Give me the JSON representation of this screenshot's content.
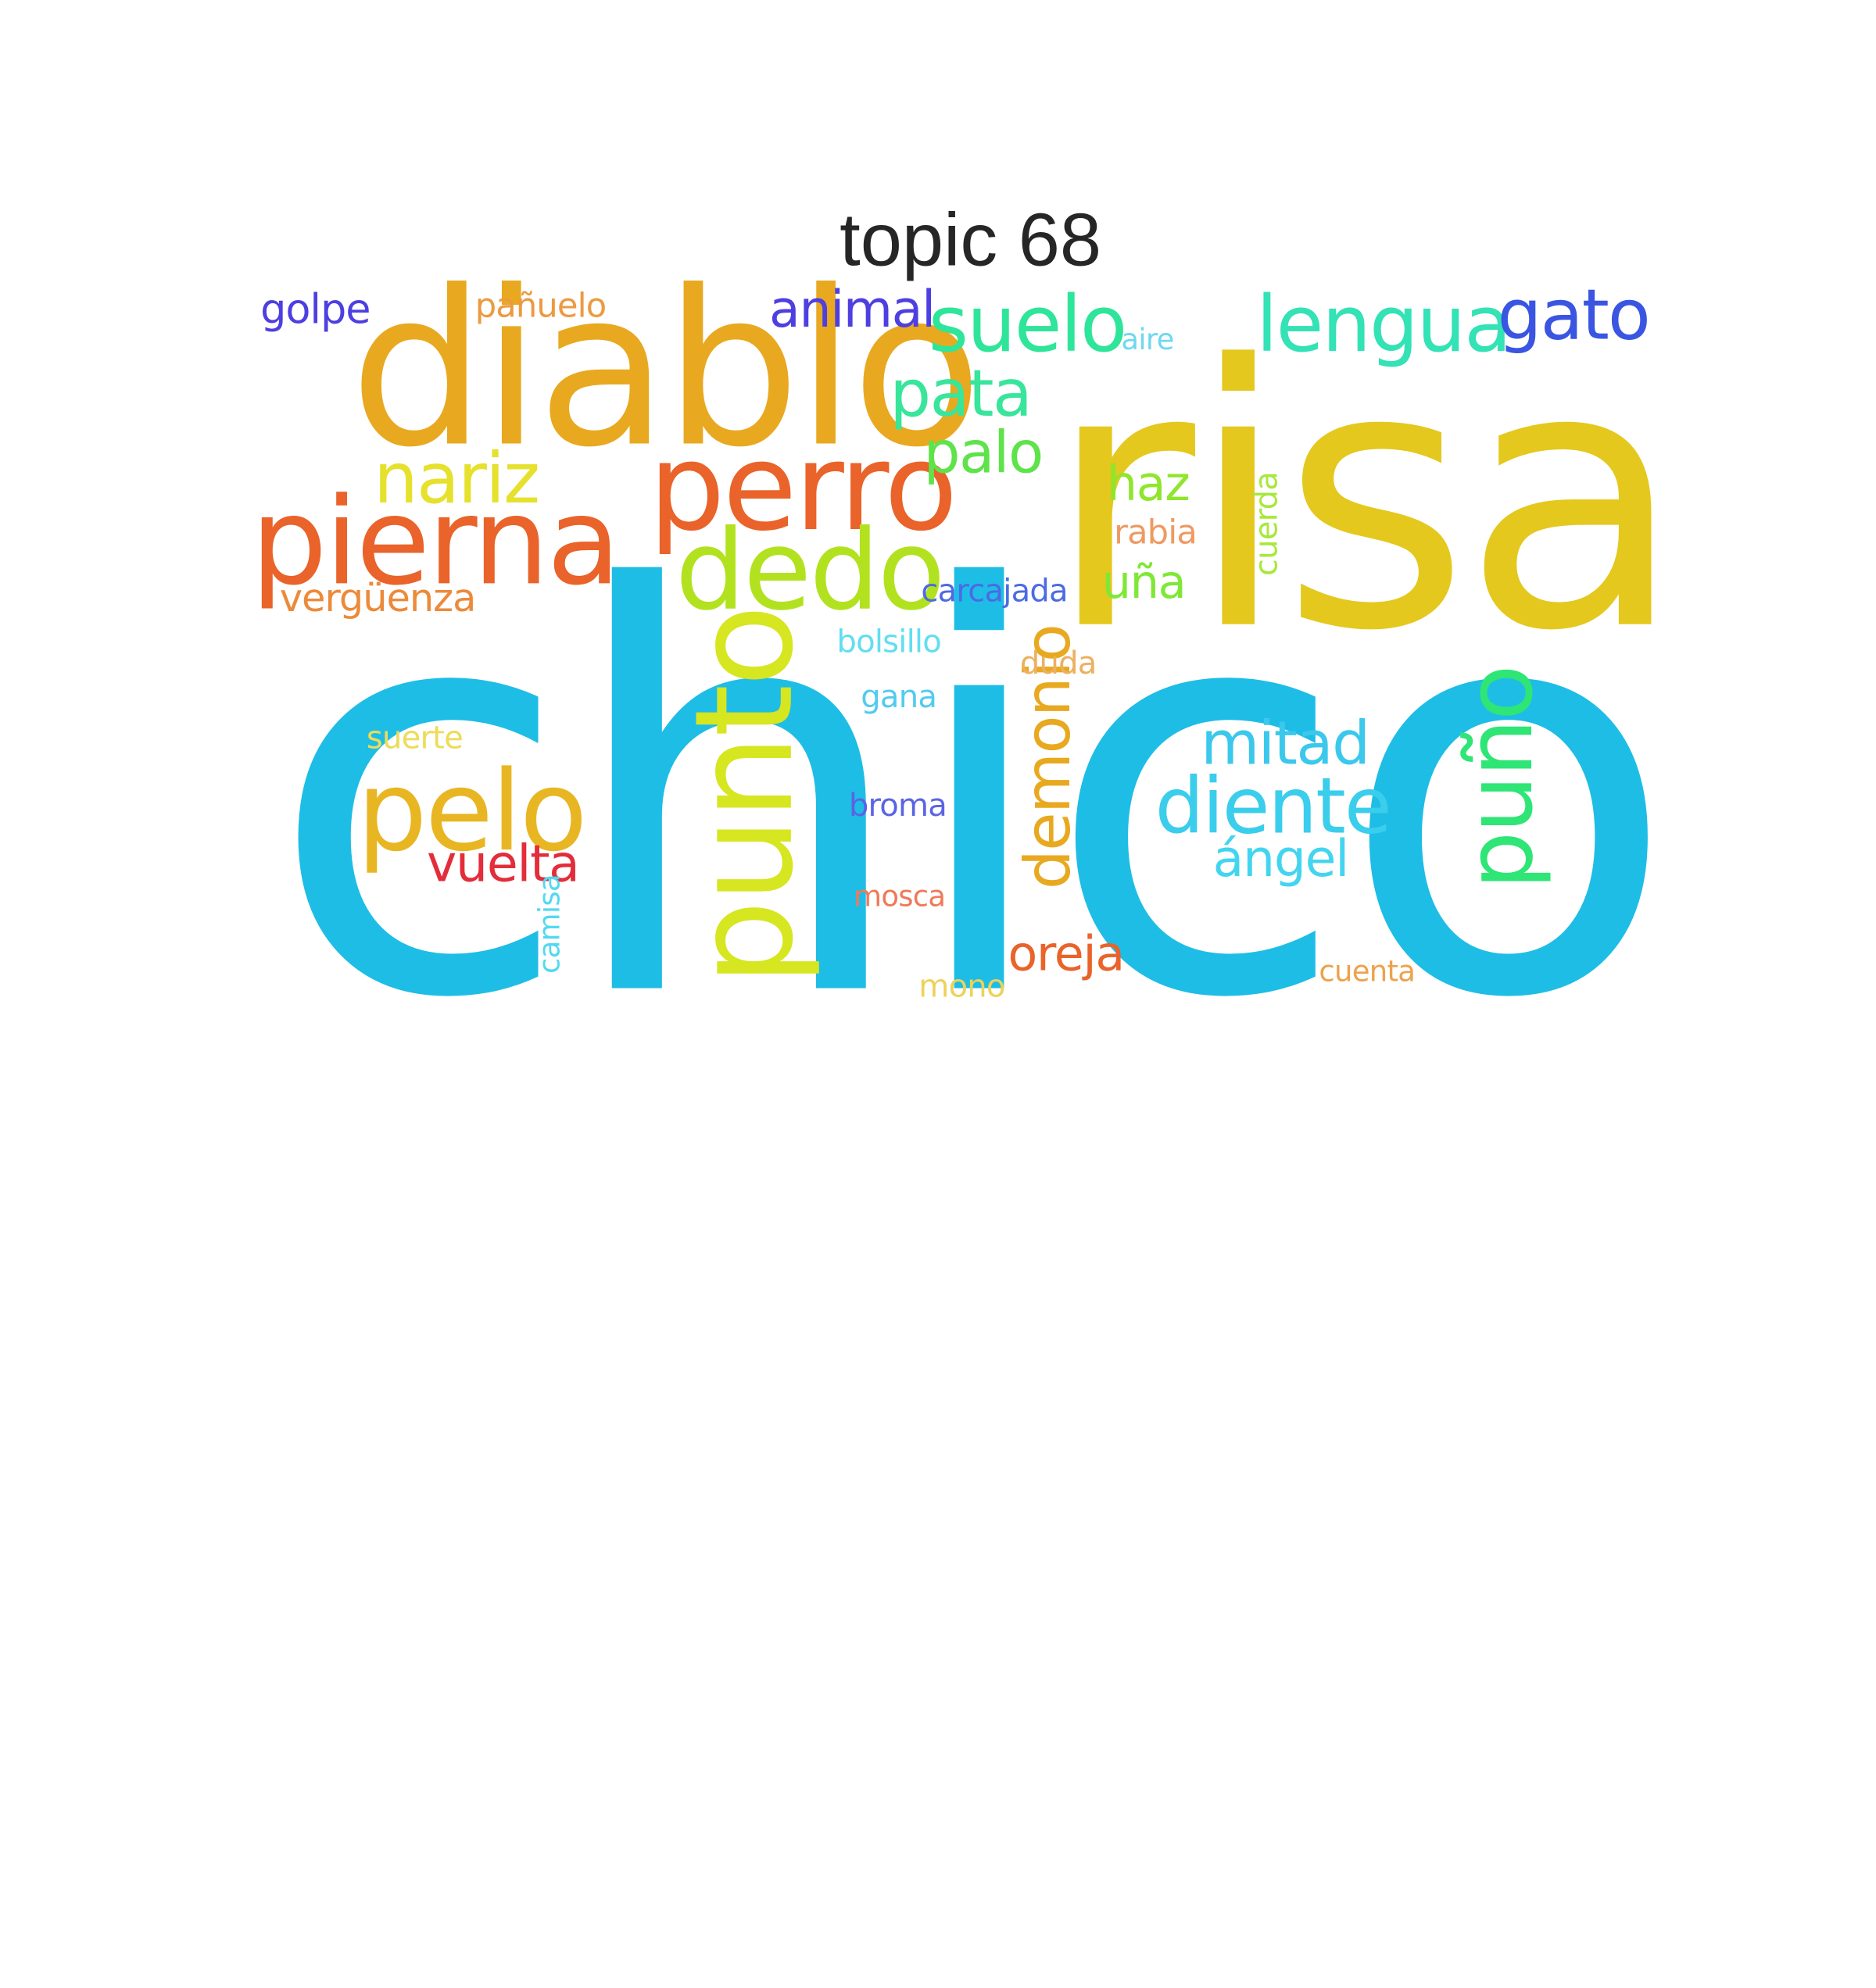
{
  "title": "topic 68",
  "colors": {
    "cyan": "#1ebde5",
    "gold": "#e4c81e",
    "amber": "#e8a920",
    "orange": "#e9632a",
    "lime": "#b2e21f",
    "yellow": "#e5e12c",
    "green": "#2ee576",
    "teal": "#33e2b5",
    "blue": "#3a55e1",
    "indigo": "#4d3fe0",
    "red": "#e32d3a",
    "sky": "#3bcdec"
  },
  "words": [
    {
      "text": "chico",
      "color": "#1ebde5",
      "rotated": false
    },
    {
      "text": "risa",
      "color": "#e4c81e",
      "rotated": false
    },
    {
      "text": "diablo",
      "color": "#e8a920",
      "rotated": false
    },
    {
      "text": "perro",
      "color": "#e9632a",
      "rotated": false
    },
    {
      "text": "pierna",
      "color": "#e9632a",
      "rotated": false
    },
    {
      "text": "dedo",
      "color": "#b2e21f",
      "rotated": false
    },
    {
      "text": "punto",
      "color": "#d6e620",
      "rotated": true
    },
    {
      "text": "pelo",
      "color": "#e8b622",
      "rotated": false
    },
    {
      "text": "suelo",
      "color": "#2ee59a",
      "rotated": false
    },
    {
      "text": "lengua",
      "color": "#33e2b5",
      "rotated": false
    },
    {
      "text": "gato",
      "color": "#3a55e1",
      "rotated": false
    },
    {
      "text": "diente",
      "color": "#3bcdec",
      "rotated": false
    },
    {
      "text": "puño",
      "color": "#2ee576",
      "rotated": true
    },
    {
      "text": "nariz",
      "color": "#e5e12c",
      "rotated": false
    },
    {
      "text": "pata",
      "color": "#38e59a",
      "rotated": false
    },
    {
      "text": "mitad",
      "color": "#3bc8ec",
      "rotated": false
    },
    {
      "text": "palo",
      "color": "#5ee34a",
      "rotated": false
    },
    {
      "text": "demonio",
      "color": "#e8a920",
      "rotated": true
    },
    {
      "text": "animal",
      "color": "#4d3fe0",
      "rotated": false
    },
    {
      "text": "oreja",
      "color": "#e9632a",
      "rotated": false
    },
    {
      "text": "ángel",
      "color": "#43d5ef",
      "rotated": false
    },
    {
      "text": "vuelta",
      "color": "#e32d3a",
      "rotated": false
    },
    {
      "text": "haz",
      "color": "#8fe62c",
      "rotated": false
    },
    {
      "text": "vergüenza",
      "color": "#ec8a3a",
      "rotated": false
    },
    {
      "text": "uña",
      "color": "#7fe836",
      "rotated": false
    },
    {
      "text": "golpe",
      "color": "#4d3fe0",
      "rotated": false
    },
    {
      "text": "pañuelo",
      "color": "#ec9a40",
      "rotated": false
    },
    {
      "text": "carcajada",
      "color": "#4c6ae5",
      "rotated": false
    },
    {
      "text": "cuerda",
      "color": "#a7e83a",
      "rotated": true
    },
    {
      "text": "rabia",
      "color": "#ee9a62",
      "rotated": false
    },
    {
      "text": "bolsillo",
      "color": "#62def0",
      "rotated": false
    },
    {
      "text": "duda",
      "color": "#ecb060",
      "rotated": false
    },
    {
      "text": "gana",
      "color": "#52cbef",
      "rotated": false
    },
    {
      "text": "broma",
      "color": "#5a64e4",
      "rotated": false
    },
    {
      "text": "suerte",
      "color": "#ecdc5a",
      "rotated": false
    },
    {
      "text": "mosca",
      "color": "#ee7a5a",
      "rotated": false
    },
    {
      "text": "camisa",
      "color": "#52d9f0",
      "rotated": true
    },
    {
      "text": "cuenta",
      "color": "#eca24c",
      "rotated": false
    },
    {
      "text": "mono",
      "color": "#ecd25a",
      "rotated": false
    },
    {
      "text": "aire",
      "color": "#6ed8f0",
      "rotated": false
    }
  ]
}
